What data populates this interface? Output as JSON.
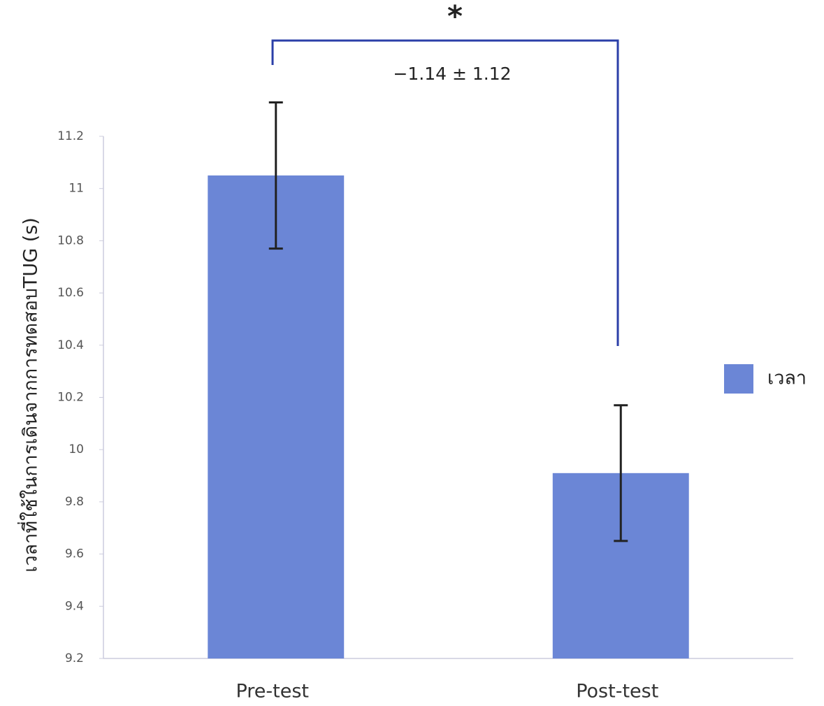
{
  "chart_data": {
    "type": "bar",
    "y_label": "เวลาที่ใช้ในการเดินจากการทดสอบTUG (s)",
    "categories": [
      "Pre-test",
      "Post-test"
    ],
    "series": [
      {
        "name": "เวลา",
        "color": "#6b86d6",
        "values": [
          11.05,
          9.91
        ],
        "errors": [
          0.28,
          0.26
        ]
      }
    ],
    "ylim": [
      9.2,
      11.2
    ],
    "yticks": [
      9.2,
      9.4,
      9.6,
      9.8,
      10,
      10.2,
      10.4,
      10.6,
      10.8,
      11,
      11.2
    ],
    "annotations": [
      "*",
      "−1.14 ± 1.12"
    ]
  }
}
